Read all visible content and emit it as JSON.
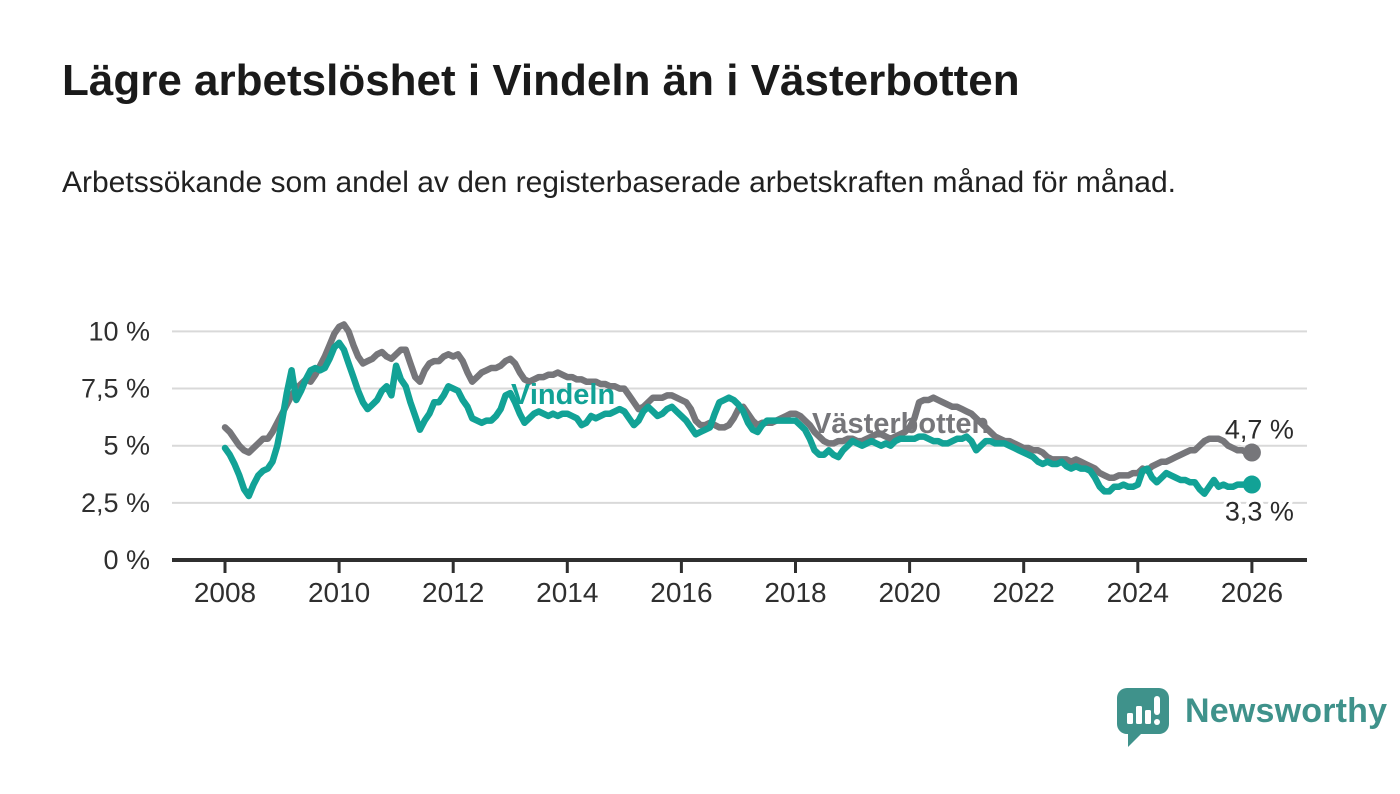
{
  "header": {
    "title": "Lägre arbetslöshet i Vindeln än i Västerbotten",
    "subtitle": "Arbetssökande som andel av den registerbaserade arbetskraften månad för månad."
  },
  "footer": {
    "logo_text": "Newsworthy",
    "logo_color": "#3f928b"
  },
  "chart_data": {
    "type": "line",
    "x_start_year": 2008,
    "x_step_months": 1,
    "x_end_label_implied": "2026",
    "ylim": [
      0,
      10.5
    ],
    "grid": true,
    "y_ticks": [
      {
        "v": 0,
        "label": "0 %"
      },
      {
        "v": 2.5,
        "label": "2,5 %"
      },
      {
        "v": 5,
        "label": "5 %"
      },
      {
        "v": 7.5,
        "label": "7,5 %"
      },
      {
        "v": 10,
        "label": "10 %"
      }
    ],
    "x_ticks": [
      {
        "v": 2008,
        "label": "2008"
      },
      {
        "v": 2010,
        "label": "2010"
      },
      {
        "v": 2012,
        "label": "2012"
      },
      {
        "v": 2014,
        "label": "2014"
      },
      {
        "v": 2016,
        "label": "2016"
      },
      {
        "v": 2018,
        "label": "2018"
      },
      {
        "v": 2020,
        "label": "2020"
      },
      {
        "v": 2022,
        "label": "2022"
      },
      {
        "v": 2024,
        "label": "2024"
      },
      {
        "v": 2026,
        "label": "2026"
      }
    ],
    "series": [
      {
        "name": "Västerbotten",
        "color": "#76767a",
        "end_label": "4,7 %",
        "values": [
          5.8,
          5.6,
          5.3,
          5.0,
          4.8,
          4.7,
          4.9,
          5.1,
          5.3,
          5.3,
          5.6,
          6.0,
          6.4,
          6.8,
          7.2,
          7.5,
          7.7,
          7.9,
          7.8,
          8.1,
          8.5,
          8.9,
          9.4,
          9.9,
          10.2,
          10.3,
          10.0,
          9.4,
          8.9,
          8.6,
          8.7,
          8.8,
          9.0,
          9.1,
          8.9,
          8.8,
          9.0,
          9.2,
          9.2,
          8.6,
          8.0,
          7.8,
          8.3,
          8.6,
          8.7,
          8.7,
          8.9,
          9.0,
          8.9,
          9.0,
          8.7,
          8.2,
          7.8,
          8.0,
          8.2,
          8.3,
          8.4,
          8.4,
          8.5,
          8.7,
          8.8,
          8.6,
          8.2,
          7.9,
          7.8,
          7.9,
          8.0,
          8.0,
          8.1,
          8.1,
          8.2,
          8.1,
          8.0,
          8.0,
          7.9,
          7.9,
          7.8,
          7.8,
          7.8,
          7.7,
          7.7,
          7.6,
          7.6,
          7.5,
          7.5,
          7.2,
          6.9,
          6.6,
          6.7,
          6.9,
          7.1,
          7.1,
          7.1,
          7.2,
          7.2,
          7.1,
          7.0,
          6.9,
          6.6,
          6.1,
          5.9,
          5.9,
          6.0,
          5.9,
          5.8,
          5.8,
          5.9,
          6.2,
          6.6,
          6.7,
          6.4,
          6.1,
          5.9,
          6.0,
          6.0,
          6.0,
          6.1,
          6.2,
          6.3,
          6.4,
          6.4,
          6.3,
          6.1,
          5.9,
          5.6,
          5.4,
          5.2,
          5.1,
          5.1,
          5.2,
          5.2,
          5.3,
          5.3,
          5.2,
          5.2,
          5.3,
          5.4,
          5.5,
          5.5,
          5.4,
          5.3,
          5.4,
          5.5,
          5.6,
          5.8,
          6.2,
          6.9,
          7.0,
          7.0,
          7.1,
          7.0,
          6.9,
          6.8,
          6.7,
          6.7,
          6.6,
          6.5,
          6.4,
          6.2,
          6.0,
          5.8,
          5.6,
          5.4,
          5.3,
          5.2,
          5.2,
          5.1,
          5.0,
          4.9,
          4.9,
          4.8,
          4.8,
          4.7,
          4.5,
          4.4,
          4.4,
          4.4,
          4.4,
          4.3,
          4.4,
          4.3,
          4.2,
          4.1,
          4.0,
          3.8,
          3.7,
          3.6,
          3.6,
          3.7,
          3.7,
          3.7,
          3.8,
          3.8,
          4.0,
          3.9,
          4.1,
          4.2,
          4.3,
          4.3,
          4.4,
          4.5,
          4.6,
          4.7,
          4.8,
          4.8,
          5.0,
          5.2,
          5.3,
          5.3,
          5.3,
          5.2,
          5.0,
          4.9,
          4.8,
          4.8,
          4.7,
          4.7
        ]
      },
      {
        "name": "Vindeln",
        "color": "#12a296",
        "end_label": "3,3 %",
        "values": [
          4.9,
          4.6,
          4.2,
          3.7,
          3.1,
          2.8,
          3.3,
          3.7,
          3.9,
          4.0,
          4.3,
          5.0,
          6.1,
          7.3,
          8.3,
          7.0,
          7.4,
          7.9,
          8.3,
          8.4,
          8.3,
          8.4,
          8.8,
          9.3,
          9.5,
          9.2,
          8.6,
          8.0,
          7.4,
          6.9,
          6.6,
          6.8,
          7.0,
          7.4,
          7.6,
          7.2,
          8.5,
          7.9,
          7.6,
          6.9,
          6.3,
          5.7,
          6.1,
          6.4,
          6.9,
          6.9,
          7.2,
          7.6,
          7.5,
          7.4,
          7.0,
          6.7,
          6.2,
          6.1,
          6.0,
          6.1,
          6.1,
          6.3,
          6.6,
          7.2,
          7.3,
          6.9,
          6.4,
          6.0,
          6.2,
          6.4,
          6.5,
          6.4,
          6.3,
          6.4,
          6.3,
          6.4,
          6.4,
          6.3,
          6.2,
          5.9,
          6.0,
          6.3,
          6.2,
          6.3,
          6.4,
          6.4,
          6.5,
          6.6,
          6.5,
          6.2,
          5.9,
          6.1,
          6.5,
          6.7,
          6.5,
          6.3,
          6.4,
          6.6,
          6.7,
          6.5,
          6.3,
          6.1,
          5.8,
          5.5,
          5.6,
          5.7,
          5.8,
          6.4,
          6.9,
          7.0,
          7.1,
          7.0,
          6.8,
          6.5,
          6.0,
          5.7,
          5.6,
          5.9,
          6.1,
          6.1,
          6.1,
          6.1,
          6.1,
          6.1,
          6.1,
          5.9,
          5.7,
          5.3,
          4.8,
          4.6,
          4.6,
          4.8,
          4.6,
          4.5,
          4.8,
          5.0,
          5.2,
          5.1,
          5.0,
          5.1,
          5.2,
          5.1,
          5.0,
          5.1,
          5.0,
          5.2,
          5.3,
          5.3,
          5.3,
          5.3,
          5.4,
          5.4,
          5.3,
          5.2,
          5.2,
          5.1,
          5.1,
          5.2,
          5.3,
          5.3,
          5.4,
          5.2,
          4.8,
          5.0,
          5.2,
          5.2,
          5.1,
          5.1,
          5.1,
          5.0,
          4.9,
          4.8,
          4.7,
          4.6,
          4.5,
          4.3,
          4.2,
          4.3,
          4.2,
          4.2,
          4.3,
          4.1,
          4.0,
          4.1,
          4.0,
          4.0,
          3.9,
          3.6,
          3.2,
          3.0,
          3.0,
          3.2,
          3.2,
          3.3,
          3.2,
          3.2,
          3.3,
          3.9,
          4.0,
          3.6,
          3.4,
          3.6,
          3.8,
          3.7,
          3.6,
          3.5,
          3.5,
          3.4,
          3.4,
          3.1,
          2.9,
          3.2,
          3.5,
          3.2,
          3.3,
          3.2,
          3.2,
          3.3,
          3.3,
          3.3,
          3.3
        ]
      }
    ],
    "style": {
      "grid_color": "#d9d9d9",
      "axis_color": "#2f2f2f",
      "tick_label_color": "#2f2f2f",
      "end_label_color": "#2b2b2b"
    }
  }
}
